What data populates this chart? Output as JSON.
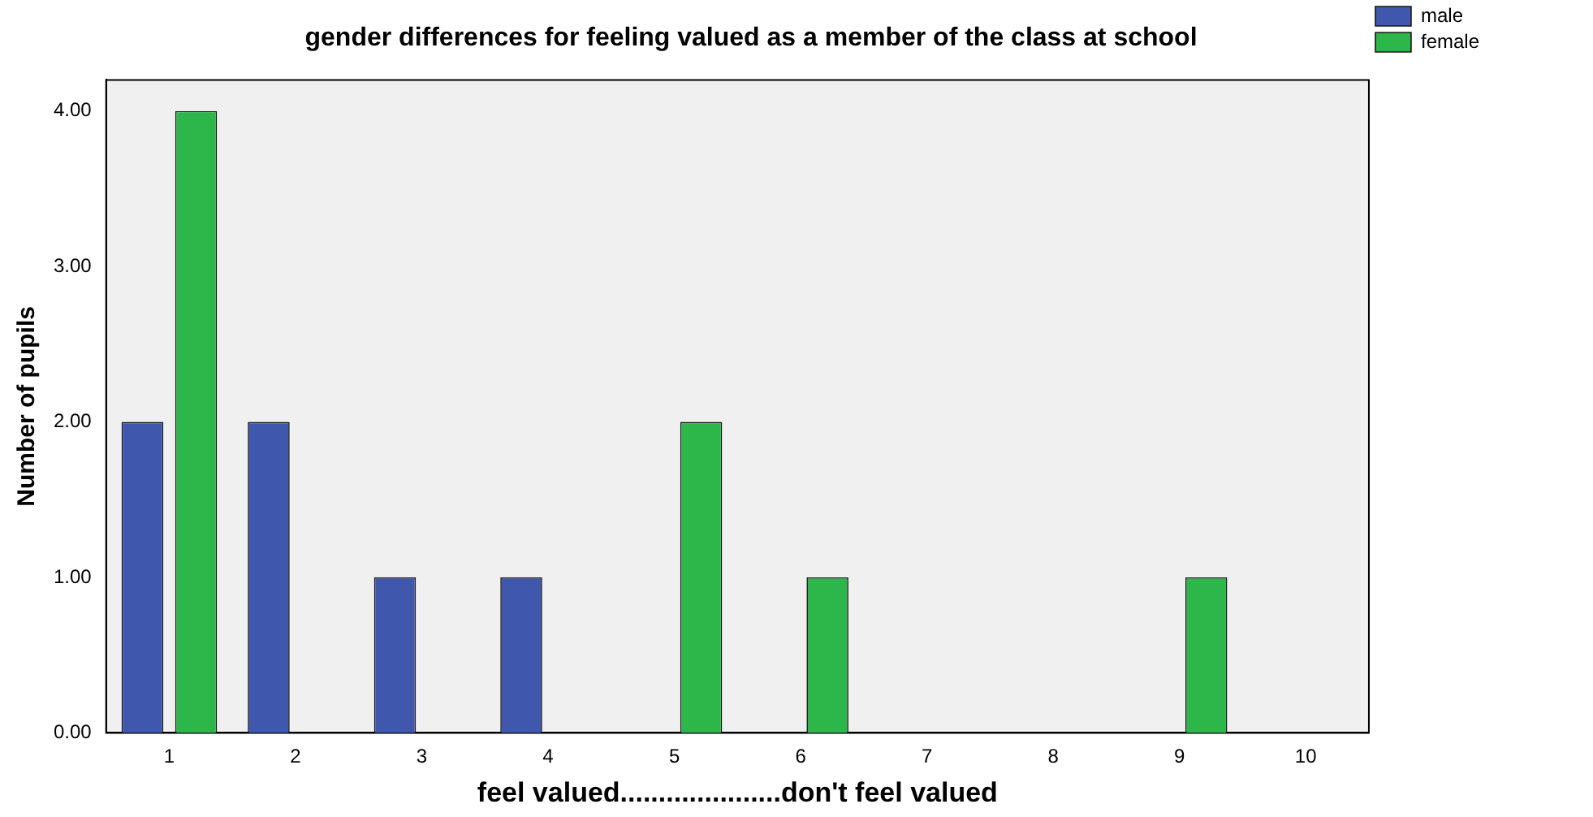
{
  "chart_data": {
    "type": "bar",
    "title": "gender differences for feeling valued as a member of the class at school",
    "xlabel": "feel valued.....................don't feel valued",
    "ylabel": "Number of pupils",
    "categories": [
      "1",
      "2",
      "3",
      "4",
      "5",
      "6",
      "7",
      "8",
      "9",
      "10"
    ],
    "series": [
      {
        "name": "male",
        "color": "#3f58ad",
        "values": [
          2,
          2,
          1,
          1,
          0,
          0,
          0,
          0,
          0,
          0
        ]
      },
      {
        "name": "female",
        "color": "#2db64a",
        "values": [
          4,
          0,
          0,
          0,
          2,
          1,
          0,
          0,
          1,
          0
        ]
      }
    ],
    "ylim": [
      0,
      4.2
    ],
    "yticks": [
      {
        "value": 0,
        "label": "0.00"
      },
      {
        "value": 1,
        "label": "1.00"
      },
      {
        "value": 2,
        "label": "2.00"
      },
      {
        "value": 3,
        "label": "3.00"
      },
      {
        "value": 4,
        "label": "4.00"
      }
    ],
    "grid": false,
    "legend": "top right"
  }
}
